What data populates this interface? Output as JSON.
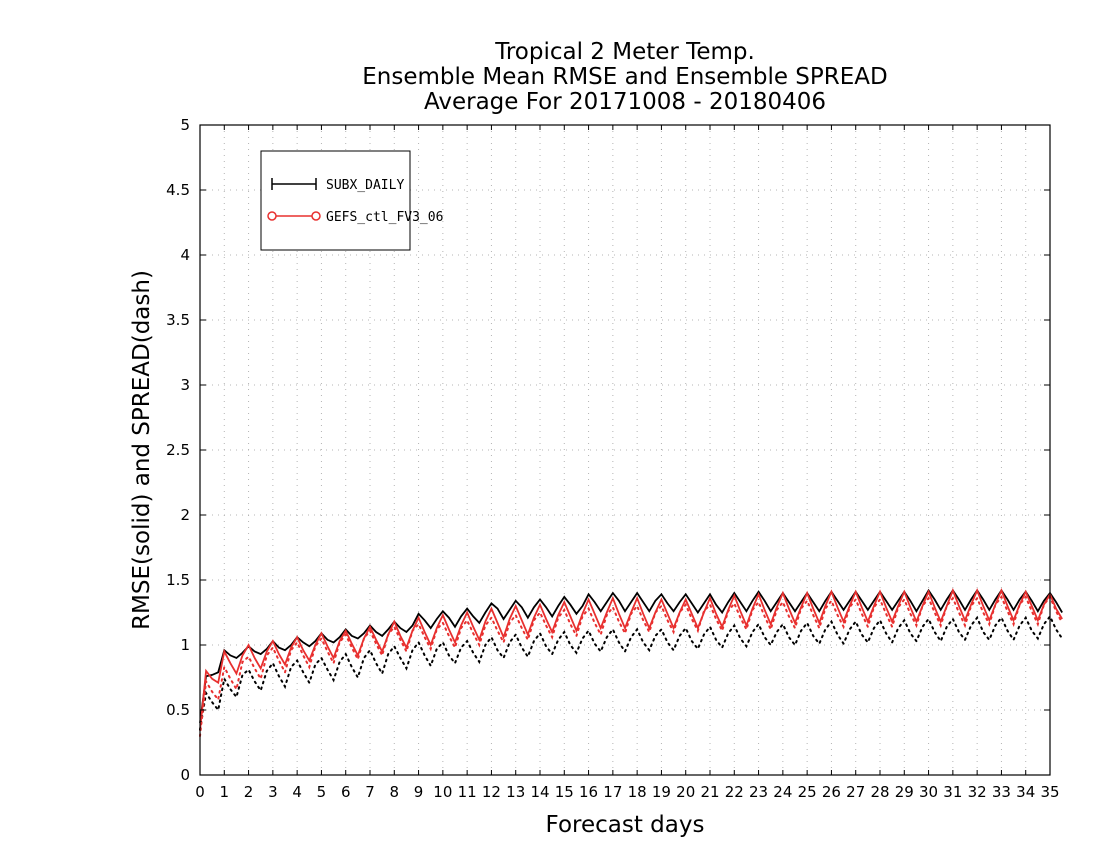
{
  "chart_data": {
    "type": "line",
    "title": [
      "Tropical 2 Meter Temp.",
      "Ensemble Mean RMSE and Ensemble SPREAD",
      "Average For 20171008 - 20180406"
    ],
    "xlabel": "Forecast days",
    "ylabel": "RMSE(solid) and SPREAD(dash)",
    "xlim": [
      0,
      35
    ],
    "ylim": [
      0,
      5
    ],
    "xticks": [
      0,
      1,
      2,
      3,
      4,
      5,
      6,
      7,
      8,
      9,
      10,
      11,
      12,
      13,
      14,
      15,
      16,
      17,
      18,
      19,
      20,
      21,
      22,
      23,
      24,
      25,
      26,
      27,
      28,
      29,
      30,
      31,
      32,
      33,
      34,
      35
    ],
    "yticks": [
      0,
      0.5,
      1,
      1.5,
      2,
      2.5,
      3,
      3.5,
      4,
      4.5,
      5
    ],
    "ytick_labels": [
      "0",
      "0.5",
      "1",
      "1.5",
      "2",
      "2.5",
      "3",
      "3.5",
      "4",
      "4.5",
      "5"
    ],
    "grid": true,
    "legend_position": "top-left",
    "x_step_days": 0.25,
    "series": [
      {
        "name": "SUBX_DAILY",
        "kind": "rmse",
        "style": "solid",
        "marker": "plus",
        "color": "#000000",
        "values": [
          0.4,
          0.76,
          0.77,
          0.79,
          0.96,
          0.92,
          0.9,
          0.94,
          0.99,
          0.95,
          0.93,
          0.97,
          1.03,
          0.98,
          0.96,
          1.0,
          1.06,
          1.02,
          0.99,
          1.03,
          1.09,
          1.04,
          1.02,
          1.06,
          1.12,
          1.07,
          1.05,
          1.09,
          1.15,
          1.1,
          1.07,
          1.12,
          1.18,
          1.13,
          1.1,
          1.15,
          1.24,
          1.19,
          1.13,
          1.2,
          1.26,
          1.21,
          1.14,
          1.22,
          1.28,
          1.22,
          1.17,
          1.25,
          1.32,
          1.28,
          1.2,
          1.27,
          1.34,
          1.29,
          1.21,
          1.29,
          1.35,
          1.29,
          1.22,
          1.3,
          1.37,
          1.31,
          1.24,
          1.3,
          1.39,
          1.33,
          1.26,
          1.33,
          1.4,
          1.34,
          1.26,
          1.33,
          1.4,
          1.33,
          1.26,
          1.34,
          1.39,
          1.32,
          1.26,
          1.33,
          1.39,
          1.32,
          1.25,
          1.32,
          1.39,
          1.31,
          1.25,
          1.33,
          1.4,
          1.33,
          1.26,
          1.34,
          1.41,
          1.34,
          1.26,
          1.33,
          1.4,
          1.33,
          1.26,
          1.33,
          1.4,
          1.33,
          1.26,
          1.34,
          1.41,
          1.34,
          1.27,
          1.34,
          1.41,
          1.34,
          1.27,
          1.34,
          1.41,
          1.34,
          1.27,
          1.34,
          1.41,
          1.34,
          1.26,
          1.34,
          1.42,
          1.35,
          1.27,
          1.35,
          1.42,
          1.35,
          1.27,
          1.35,
          1.42,
          1.35,
          1.27,
          1.35,
          1.42,
          1.35,
          1.27,
          1.35,
          1.41,
          1.34,
          1.26,
          1.34,
          1.4,
          1.33,
          1.25
        ]
      },
      {
        "name": "GEFS_ctl_FV3_06",
        "kind": "rmse",
        "style": "solid",
        "marker": "circle",
        "color": "#e8302f",
        "values": [
          0.34,
          0.8,
          0.74,
          0.71,
          0.95,
          0.86,
          0.78,
          0.92,
          1.0,
          0.9,
          0.82,
          0.95,
          1.03,
          0.93,
          0.85,
          0.98,
          1.06,
          0.96,
          0.88,
          1.0,
          1.09,
          0.99,
          0.9,
          1.03,
          1.11,
          1.01,
          0.92,
          1.05,
          1.14,
          1.04,
          0.95,
          1.08,
          1.18,
          1.07,
          0.98,
          1.11,
          1.21,
          1.1,
          1.0,
          1.13,
          1.23,
          1.12,
          1.02,
          1.15,
          1.25,
          1.14,
          1.04,
          1.18,
          1.28,
          1.17,
          1.06,
          1.2,
          1.3,
          1.19,
          1.08,
          1.21,
          1.31,
          1.2,
          1.1,
          1.23,
          1.33,
          1.22,
          1.11,
          1.24,
          1.35,
          1.24,
          1.13,
          1.25,
          1.36,
          1.24,
          1.13,
          1.25,
          1.36,
          1.24,
          1.13,
          1.25,
          1.35,
          1.24,
          1.13,
          1.25,
          1.35,
          1.24,
          1.13,
          1.25,
          1.36,
          1.24,
          1.14,
          1.27,
          1.38,
          1.26,
          1.15,
          1.28,
          1.39,
          1.27,
          1.16,
          1.29,
          1.4,
          1.28,
          1.17,
          1.29,
          1.4,
          1.28,
          1.17,
          1.3,
          1.41,
          1.29,
          1.18,
          1.3,
          1.41,
          1.29,
          1.18,
          1.3,
          1.41,
          1.29,
          1.18,
          1.3,
          1.41,
          1.29,
          1.18,
          1.3,
          1.41,
          1.29,
          1.18,
          1.3,
          1.42,
          1.3,
          1.19,
          1.31,
          1.42,
          1.3,
          1.19,
          1.31,
          1.42,
          1.3,
          1.19,
          1.31,
          1.41,
          1.3,
          1.19,
          1.31,
          1.39,
          1.28,
          1.2
        ]
      },
      {
        "name": "SUBX_DAILY",
        "kind": "spread",
        "style": "dotted",
        "color": "#000000",
        "values": [
          0.35,
          0.63,
          0.56,
          0.5,
          0.74,
          0.66,
          0.6,
          0.77,
          0.81,
          0.72,
          0.65,
          0.8,
          0.86,
          0.76,
          0.68,
          0.83,
          0.88,
          0.79,
          0.71,
          0.85,
          0.9,
          0.81,
          0.73,
          0.87,
          0.93,
          0.83,
          0.75,
          0.9,
          0.96,
          0.86,
          0.78,
          0.93,
          0.99,
          0.9,
          0.82,
          0.96,
          1.02,
          0.92,
          0.84,
          0.97,
          1.02,
          0.92,
          0.86,
          0.98,
          1.03,
          0.94,
          0.87,
          1.0,
          1.06,
          0.96,
          0.9,
          1.02,
          1.08,
          0.98,
          0.91,
          1.03,
          1.09,
          0.99,
          0.93,
          1.04,
          1.1,
          1.0,
          0.94,
          1.05,
          1.11,
          1.01,
          0.95,
          1.06,
          1.12,
          1.02,
          0.95,
          1.06,
          1.12,
          1.02,
          0.96,
          1.07,
          1.12,
          1.02,
          0.96,
          1.07,
          1.13,
          1.03,
          0.97,
          1.08,
          1.14,
          1.04,
          0.98,
          1.09,
          1.15,
          1.05,
          0.99,
          1.1,
          1.16,
          1.06,
          1.0,
          1.1,
          1.16,
          1.06,
          1.0,
          1.11,
          1.17,
          1.07,
          1.01,
          1.12,
          1.18,
          1.08,
          1.01,
          1.12,
          1.18,
          1.08,
          1.02,
          1.13,
          1.19,
          1.09,
          1.02,
          1.13,
          1.19,
          1.09,
          1.03,
          1.14,
          1.2,
          1.1,
          1.03,
          1.14,
          1.2,
          1.1,
          1.04,
          1.15,
          1.21,
          1.1,
          1.04,
          1.15,
          1.21,
          1.11,
          1.04,
          1.15,
          1.21,
          1.11,
          1.05,
          1.16,
          1.22,
          1.12,
          1.05
        ]
      },
      {
        "name": "GEFS_ctl_FV3_06",
        "kind": "spread",
        "style": "dotted",
        "color": "#e8302f",
        "values": [
          0.3,
          0.72,
          0.64,
          0.58,
          0.83,
          0.74,
          0.66,
          0.87,
          0.91,
          0.82,
          0.74,
          0.92,
          0.98,
          0.88,
          0.79,
          0.96,
          1.02,
          0.92,
          0.83,
          0.99,
          1.05,
          0.95,
          0.86,
          1.02,
          1.08,
          0.98,
          0.89,
          1.05,
          1.11,
          1.01,
          0.92,
          1.08,
          1.14,
          1.04,
          0.95,
          1.11,
          1.16,
          1.06,
          0.97,
          1.12,
          1.17,
          1.07,
          0.98,
          1.13,
          1.19,
          1.09,
          1.0,
          1.15,
          1.21,
          1.11,
          1.02,
          1.17,
          1.23,
          1.13,
          1.04,
          1.19,
          1.25,
          1.15,
          1.06,
          1.21,
          1.27,
          1.16,
          1.07,
          1.22,
          1.28,
          1.17,
          1.08,
          1.23,
          1.29,
          1.18,
          1.09,
          1.24,
          1.3,
          1.19,
          1.1,
          1.25,
          1.3,
          1.19,
          1.1,
          1.25,
          1.31,
          1.2,
          1.11,
          1.26,
          1.31,
          1.2,
          1.11,
          1.26,
          1.32,
          1.21,
          1.12,
          1.27,
          1.33,
          1.22,
          1.12,
          1.27,
          1.33,
          1.22,
          1.13,
          1.28,
          1.34,
          1.23,
          1.13,
          1.28,
          1.34,
          1.23,
          1.14,
          1.29,
          1.35,
          1.24,
          1.14,
          1.29,
          1.35,
          1.24,
          1.14,
          1.29,
          1.35,
          1.24,
          1.15,
          1.3,
          1.36,
          1.25,
          1.15,
          1.3,
          1.36,
          1.25,
          1.15,
          1.3,
          1.36,
          1.25,
          1.16,
          1.31,
          1.37,
          1.26,
          1.16,
          1.31,
          1.37,
          1.26,
          1.16,
          1.31,
          1.37,
          1.26,
          1.17
        ]
      }
    ]
  }
}
